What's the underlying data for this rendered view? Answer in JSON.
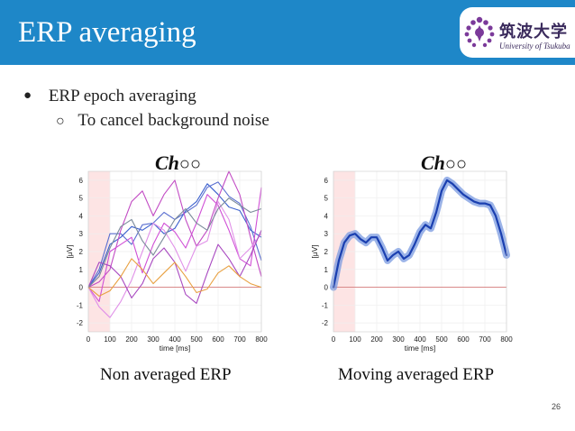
{
  "slide": {
    "title": "ERP averaging",
    "page_number": "26",
    "colors": {
      "header_bg": "#1e87c8",
      "header_text": "#ffffff",
      "logo_text": "#3a2a5c",
      "logo_mark": "#7b3a9a"
    }
  },
  "logo": {
    "name_jp": "筑波大学",
    "name_en": "University of Tsukuba"
  },
  "bullets": [
    {
      "marker": "●",
      "text": "ERP epoch averaging",
      "level": 1
    },
    {
      "marker": "○",
      "text": "To cancel background noise",
      "level": 2
    }
  ],
  "chart_data": [
    {
      "type": "line",
      "channel_title": "Ch",
      "channel_suffix": "○○",
      "caption": "Non averaged ERP",
      "xlabel": "time [ms]",
      "ylabel": "[μV]",
      "xlim": [
        0,
        800
      ],
      "ylim": [
        -2.5,
        6.5
      ],
      "xticks": [
        0,
        100,
        200,
        300,
        400,
        500,
        600,
        700,
        800
      ],
      "yticks": [
        -2,
        -1,
        0,
        1,
        2,
        3,
        4,
        5,
        6
      ],
      "shaded_interval": [
        0,
        100
      ],
      "baseline": 0,
      "grid": true,
      "series": [
        {
          "color": "#3a5fcd",
          "x": [
            0,
            50,
            100,
            150,
            200,
            250,
            300,
            350,
            400,
            450,
            500,
            550,
            600,
            650,
            700,
            750,
            800
          ],
          "y": [
            0,
            0.8,
            2.4,
            2.8,
            3.4,
            3.2,
            3.6,
            3.0,
            3.3,
            4.3,
            4.8,
            5.8,
            5.2,
            4.5,
            4.3,
            3.2,
            2.8
          ]
        },
        {
          "color": "#5a6fd0",
          "x": [
            0,
            50,
            100,
            150,
            200,
            250,
            300,
            350,
            400,
            450,
            500,
            550,
            600,
            650,
            700,
            750,
            800
          ],
          "y": [
            0,
            1.0,
            3.0,
            3.0,
            2.4,
            3.5,
            3.6,
            4.2,
            3.8,
            4.2,
            4.6,
            5.6,
            5.9,
            5.1,
            4.7,
            3.4,
            1.5
          ]
        },
        {
          "color": "#c24bc4",
          "x": [
            0,
            50,
            100,
            150,
            200,
            250,
            300,
            350,
            400,
            450,
            500,
            550,
            600,
            650,
            700,
            750,
            800
          ],
          "y": [
            0,
            0.3,
            1.0,
            3.2,
            4.8,
            5.4,
            4.0,
            5.2,
            6.0,
            3.8,
            2.3,
            3.2,
            5.0,
            6.5,
            5.2,
            2.8,
            0.6
          ]
        },
        {
          "color": "#d050d6",
          "x": [
            0,
            50,
            100,
            150,
            200,
            250,
            300,
            350,
            400,
            450,
            500,
            550,
            600,
            650,
            700,
            750,
            800
          ],
          "y": [
            0,
            -0.8,
            2.0,
            2.4,
            2.8,
            0.8,
            2.4,
            3.6,
            3.1,
            2.2,
            3.6,
            5.2,
            4.6,
            3.2,
            1.6,
            1.2,
            5.6
          ]
        },
        {
          "color": "#e090e8",
          "x": [
            0,
            50,
            100,
            150,
            200,
            250,
            300,
            350,
            400,
            450,
            500,
            550,
            600,
            650,
            700,
            750,
            800
          ],
          "y": [
            0,
            -1.1,
            -1.7,
            -0.8,
            0.4,
            2.0,
            3.6,
            3.2,
            2.2,
            0.9,
            2.3,
            2.6,
            4.8,
            3.8,
            1.6,
            2.2,
            3.0
          ]
        },
        {
          "color": "#a848c0",
          "x": [
            0,
            50,
            100,
            150,
            200,
            250,
            300,
            350,
            400,
            450,
            500,
            550,
            600,
            650,
            700,
            750,
            800
          ],
          "y": [
            0,
            1.4,
            1.2,
            0.6,
            -0.6,
            0.2,
            1.6,
            2.2,
            1.4,
            -0.4,
            -0.9,
            0.8,
            2.4,
            1.6,
            0.6,
            1.8,
            3.2
          ]
        },
        {
          "color": "#e8a040",
          "x": [
            0,
            50,
            100,
            150,
            200,
            250,
            300,
            350,
            400,
            450,
            500,
            550,
            600,
            650,
            700,
            750,
            800
          ],
          "y": [
            0,
            -0.5,
            -0.2,
            0.6,
            1.6,
            1.0,
            0.2,
            0.8,
            1.4,
            0.6,
            -0.3,
            -0.1,
            0.8,
            1.2,
            0.6,
            0.2,
            0.0
          ]
        },
        {
          "color": "#7a8a9a",
          "x": [
            0,
            50,
            100,
            150,
            200,
            250,
            300,
            350,
            400,
            450,
            500,
            550,
            600,
            650,
            700,
            750,
            800
          ],
          "y": [
            0,
            0.6,
            2.2,
            3.4,
            3.8,
            2.6,
            1.8,
            2.8,
            3.8,
            4.4,
            3.6,
            3.2,
            4.4,
            5.0,
            4.6,
            4.2,
            4.4
          ]
        }
      ]
    },
    {
      "type": "line",
      "channel_title": "Ch",
      "channel_suffix": "○○",
      "caption": "Moving averaged ERP",
      "xlabel": "time [ms]",
      "ylabel": "[μV]",
      "xlim": [
        0,
        800
      ],
      "ylim": [
        -2.5,
        6.5
      ],
      "xticks": [
        0,
        100,
        200,
        300,
        400,
        500,
        600,
        700,
        800
      ],
      "yticks": [
        -2,
        -1,
        0,
        1,
        2,
        3,
        4,
        5,
        6
      ],
      "shaded_interval": [
        0,
        100
      ],
      "baseline": 0,
      "grid": true,
      "series": [
        {
          "color": "#1a3fb0",
          "band_color": "#7a9ae0",
          "x": [
            0,
            25,
            50,
            75,
            100,
            125,
            150,
            175,
            200,
            225,
            250,
            275,
            300,
            325,
            350,
            375,
            400,
            425,
            450,
            475,
            500,
            525,
            550,
            575,
            600,
            625,
            650,
            675,
            700,
            725,
            750,
            775,
            800
          ],
          "y": [
            0,
            1.5,
            2.5,
            2.9,
            3.0,
            2.7,
            2.5,
            2.8,
            2.8,
            2.2,
            1.5,
            1.8,
            2.0,
            1.6,
            1.8,
            2.4,
            3.1,
            3.5,
            3.3,
            4.2,
            5.4,
            6.0,
            5.8,
            5.5,
            5.2,
            5.0,
            4.8,
            4.7,
            4.7,
            4.6,
            4.0,
            3.0,
            1.8
          ]
        }
      ]
    }
  ]
}
